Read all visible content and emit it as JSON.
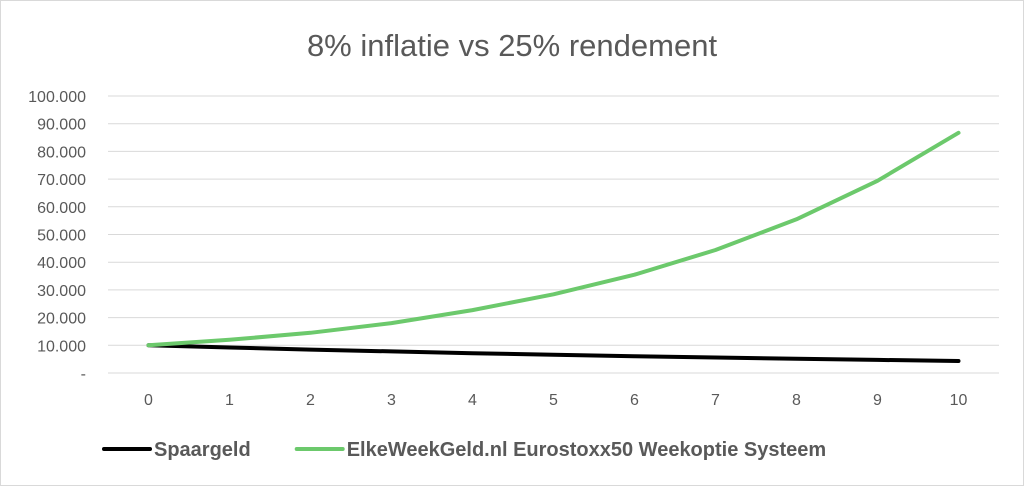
{
  "chart_data": {
    "type": "line",
    "title": "8% inflatie vs 25% rendement",
    "x": [
      0,
      1,
      2,
      3,
      4,
      5,
      6,
      7,
      8,
      9,
      10
    ],
    "y_tick_labels": [
      "-",
      "10.000",
      "20.000",
      "30.000",
      "40.000",
      "50.000",
      "60.000",
      "70.000",
      "80.000",
      "90.000",
      "100.000"
    ],
    "y_ticks": [
      0,
      10000,
      20000,
      30000,
      40000,
      50000,
      60000,
      70000,
      80000,
      90000,
      100000
    ],
    "ylim": [
      0,
      100000
    ],
    "grid": true,
    "legend_position": "bottom",
    "series": [
      {
        "name": "Spaargeld",
        "color": "#000000",
        "values": [
          10000,
          9200,
          8464,
          7787,
          7164,
          6591,
          6064,
          5578,
          5132,
          4722,
          4344
        ]
      },
      {
        "name": "ElkeWeekGeld.nl Eurostoxx50 Weekoptie Systeem",
        "color": "#6cc96c",
        "values": [
          10000,
          12000,
          14500,
          18000,
          22700,
          28400,
          35500,
          44400,
          55500,
          69400,
          86700
        ]
      }
    ]
  }
}
